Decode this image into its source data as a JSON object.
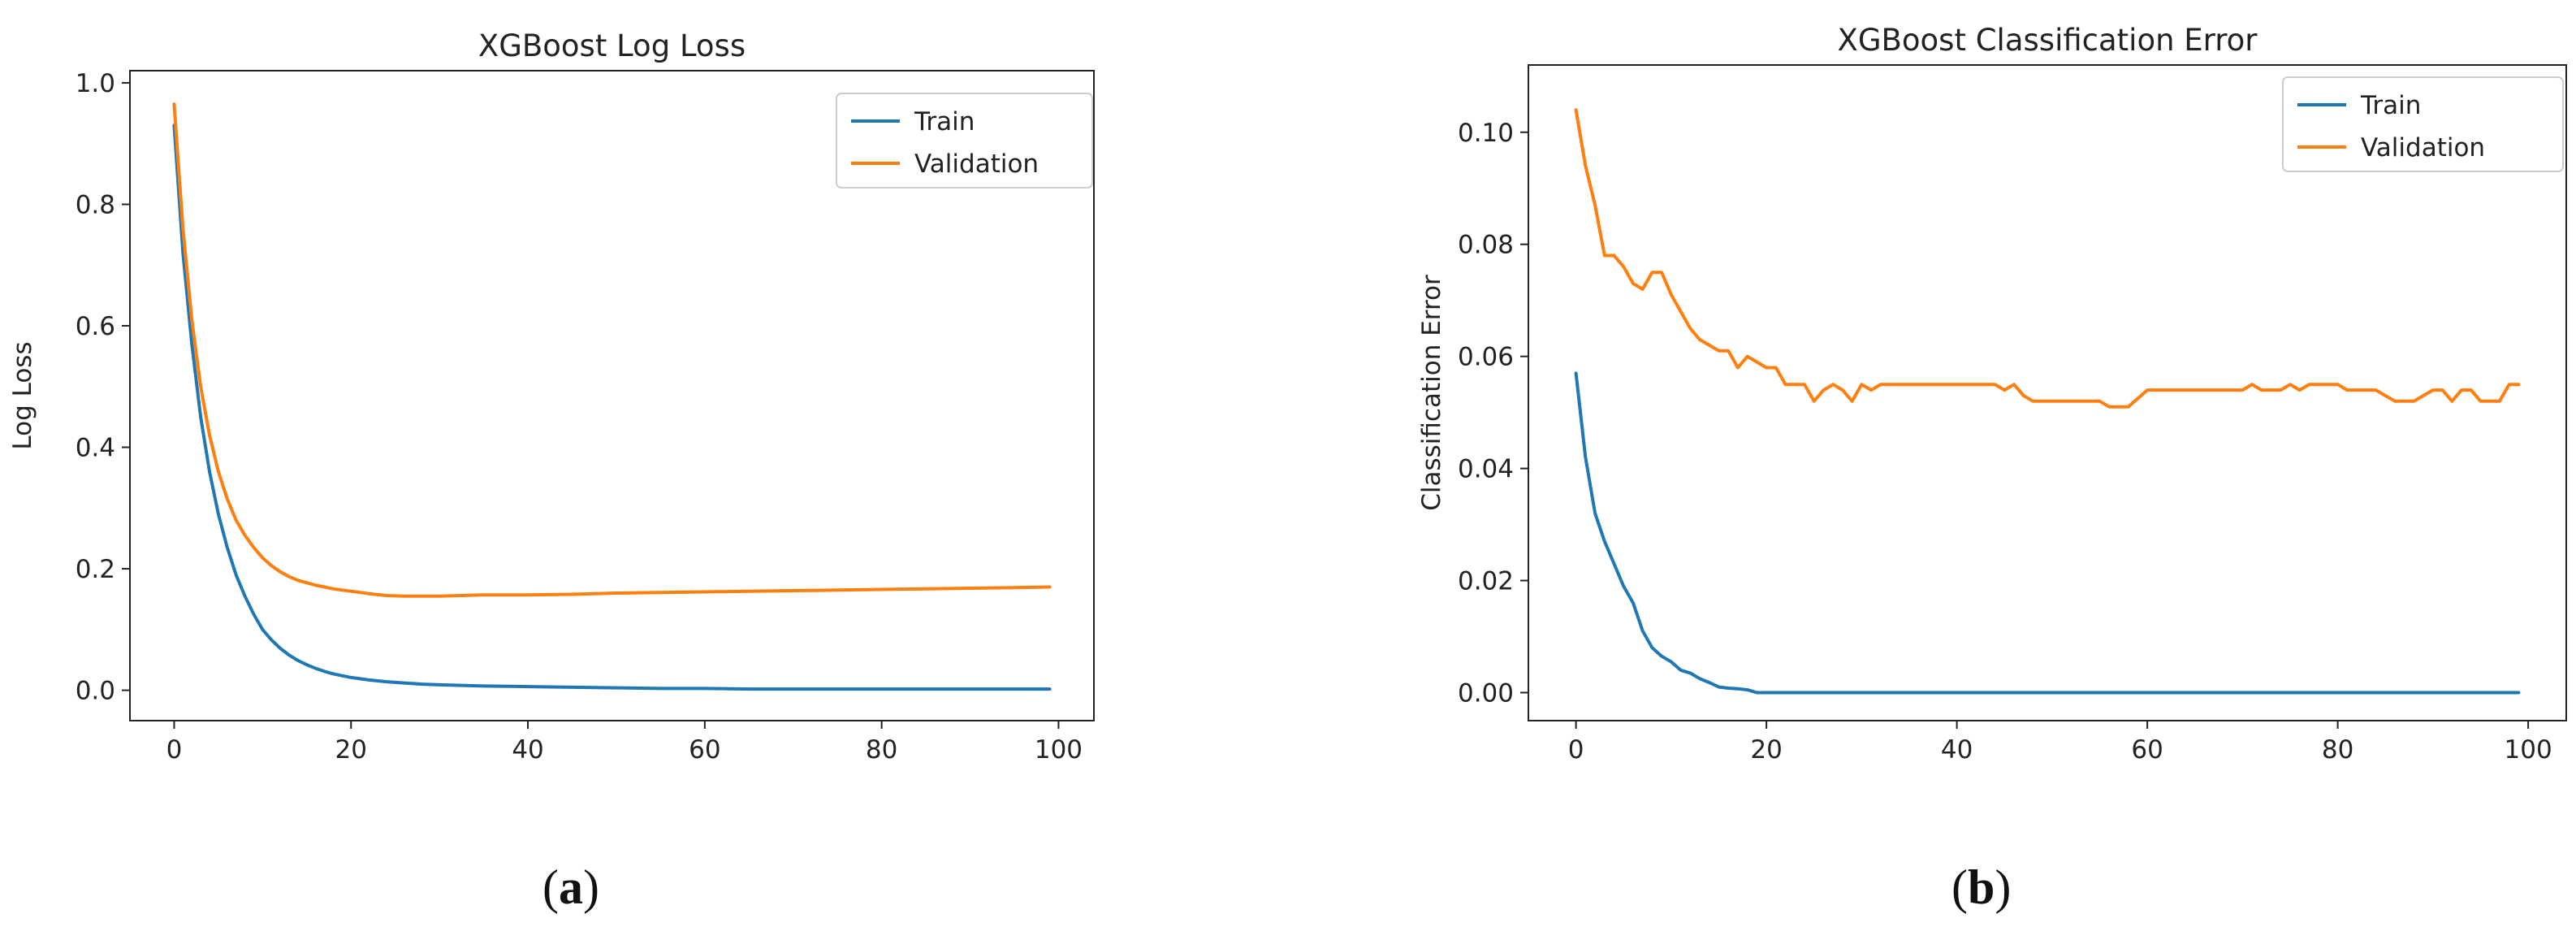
{
  "chart_data": [
    {
      "type": "line",
      "title": "XGBoost Log Loss",
      "xlabel": "",
      "ylabel": "Log Loss",
      "xlim": [
        -5,
        104
      ],
      "ylim": [
        -0.05,
        1.02
      ],
      "xticks": [
        0,
        20,
        40,
        60,
        80,
        100
      ],
      "yticks": [
        0.0,
        0.2,
        0.4,
        0.6,
        0.8,
        1.0
      ],
      "xtick_labels": [
        "0",
        "20",
        "40",
        "60",
        "80",
        "100"
      ],
      "ytick_labels": [
        "0.0",
        "0.2",
        "0.4",
        "0.6",
        "0.8",
        "1.0"
      ],
      "grid": false,
      "legend_position": "top-right",
      "x": [
        0,
        1,
        2,
        3,
        4,
        5,
        6,
        7,
        8,
        9,
        10,
        11,
        12,
        13,
        14,
        15,
        16,
        17,
        18,
        19,
        20,
        22,
        24,
        26,
        28,
        30,
        35,
        40,
        45,
        50,
        55,
        60,
        65,
        70,
        75,
        80,
        85,
        90,
        95,
        99
      ],
      "series": [
        {
          "name": "Train",
          "color": "#1f77b4",
          "values": [
            0.93,
            0.72,
            0.57,
            0.45,
            0.36,
            0.29,
            0.235,
            0.19,
            0.155,
            0.125,
            0.1,
            0.083,
            0.069,
            0.058,
            0.049,
            0.042,
            0.036,
            0.031,
            0.027,
            0.024,
            0.021,
            0.017,
            0.014,
            0.012,
            0.01,
            0.009,
            0.007,
            0.006,
            0.005,
            0.004,
            0.003,
            0.003,
            0.002,
            0.002,
            0.002,
            0.002,
            0.002,
            0.002,
            0.002,
            0.002
          ]
        },
        {
          "name": "Validation",
          "color": "#ff7f0e",
          "values": [
            0.965,
            0.76,
            0.61,
            0.5,
            0.42,
            0.36,
            0.315,
            0.28,
            0.255,
            0.235,
            0.218,
            0.205,
            0.195,
            0.187,
            0.181,
            0.177,
            0.173,
            0.17,
            0.167,
            0.165,
            0.163,
            0.159,
            0.156,
            0.155,
            0.155,
            0.155,
            0.157,
            0.157,
            0.158,
            0.16,
            0.161,
            0.162,
            0.163,
            0.164,
            0.165,
            0.166,
            0.167,
            0.168,
            0.169,
            0.17
          ]
        }
      ]
    },
    {
      "type": "line",
      "title": "XGBoost Classification Error",
      "xlabel": "",
      "ylabel": "Classification Error",
      "xlim": [
        -5,
        104
      ],
      "ylim": [
        -0.005,
        0.112
      ],
      "xticks": [
        0,
        20,
        40,
        60,
        80,
        100
      ],
      "yticks": [
        0.0,
        0.02,
        0.04,
        0.06,
        0.08,
        0.1
      ],
      "xtick_labels": [
        "0",
        "20",
        "40",
        "60",
        "80",
        "100"
      ],
      "ytick_labels": [
        "0.00",
        "0.02",
        "0.04",
        "0.06",
        "0.08",
        "0.10"
      ],
      "grid": false,
      "legend_position": "top-right",
      "series": [
        {
          "name": "Train",
          "color": "#1f77b4",
          "x": [
            0,
            1,
            2,
            3,
            4,
            5,
            6,
            7,
            8,
            9,
            10,
            11,
            12,
            13,
            14,
            15,
            16,
            17,
            18,
            19,
            20,
            99
          ],
          "values": [
            0.057,
            0.042,
            0.032,
            0.027,
            0.023,
            0.019,
            0.016,
            0.011,
            0.008,
            0.0065,
            0.0055,
            0.004,
            0.0035,
            0.0025,
            0.0018,
            0.001,
            0.0008,
            0.0007,
            0.0005,
            0.0,
            0.0,
            0.0
          ]
        },
        {
          "name": "Validation",
          "color": "#ff7f0e",
          "x": [
            0,
            1,
            2,
            3,
            4,
            5,
            6,
            7,
            8,
            9,
            10,
            11,
            12,
            13,
            14,
            15,
            16,
            17,
            18,
            19,
            20,
            21,
            22,
            23,
            24,
            25,
            26,
            27,
            28,
            29,
            30,
            31,
            32,
            34,
            36,
            38,
            40,
            42,
            44,
            45,
            46,
            47,
            48,
            50,
            52,
            54,
            55,
            56,
            57,
            58,
            60,
            62,
            64,
            66,
            68,
            70,
            71,
            72,
            73,
            74,
            75,
            76,
            77,
            78,
            79,
            80,
            81,
            82,
            83,
            84,
            85,
            86,
            87,
            88,
            89,
            90,
            91,
            92,
            93,
            94,
            95,
            96,
            97,
            98,
            99
          ],
          "values": [
            0.104,
            0.094,
            0.087,
            0.078,
            0.078,
            0.076,
            0.073,
            0.072,
            0.075,
            0.075,
            0.071,
            0.068,
            0.065,
            0.063,
            0.062,
            0.061,
            0.061,
            0.058,
            0.06,
            0.059,
            0.058,
            0.058,
            0.055,
            0.055,
            0.055,
            0.052,
            0.054,
            0.055,
            0.054,
            0.052,
            0.055,
            0.054,
            0.055,
            0.055,
            0.055,
            0.055,
            0.055,
            0.055,
            0.055,
            0.054,
            0.055,
            0.053,
            0.052,
            0.052,
            0.052,
            0.052,
            0.052,
            0.051,
            0.051,
            0.051,
            0.054,
            0.054,
            0.054,
            0.054,
            0.054,
            0.054,
            0.055,
            0.054,
            0.054,
            0.054,
            0.055,
            0.054,
            0.055,
            0.055,
            0.055,
            0.055,
            0.054,
            0.054,
            0.054,
            0.054,
            0.053,
            0.052,
            0.052,
            0.052,
            0.053,
            0.054,
            0.054,
            0.052,
            0.054,
            0.054,
            0.052,
            0.052,
            0.052,
            0.055,
            0.055
          ]
        }
      ]
    }
  ],
  "captions": {
    "a": {
      "open": "(",
      "letter": "a",
      "close": ")"
    },
    "b": {
      "open": "(",
      "letter": "b",
      "close": ")"
    }
  }
}
